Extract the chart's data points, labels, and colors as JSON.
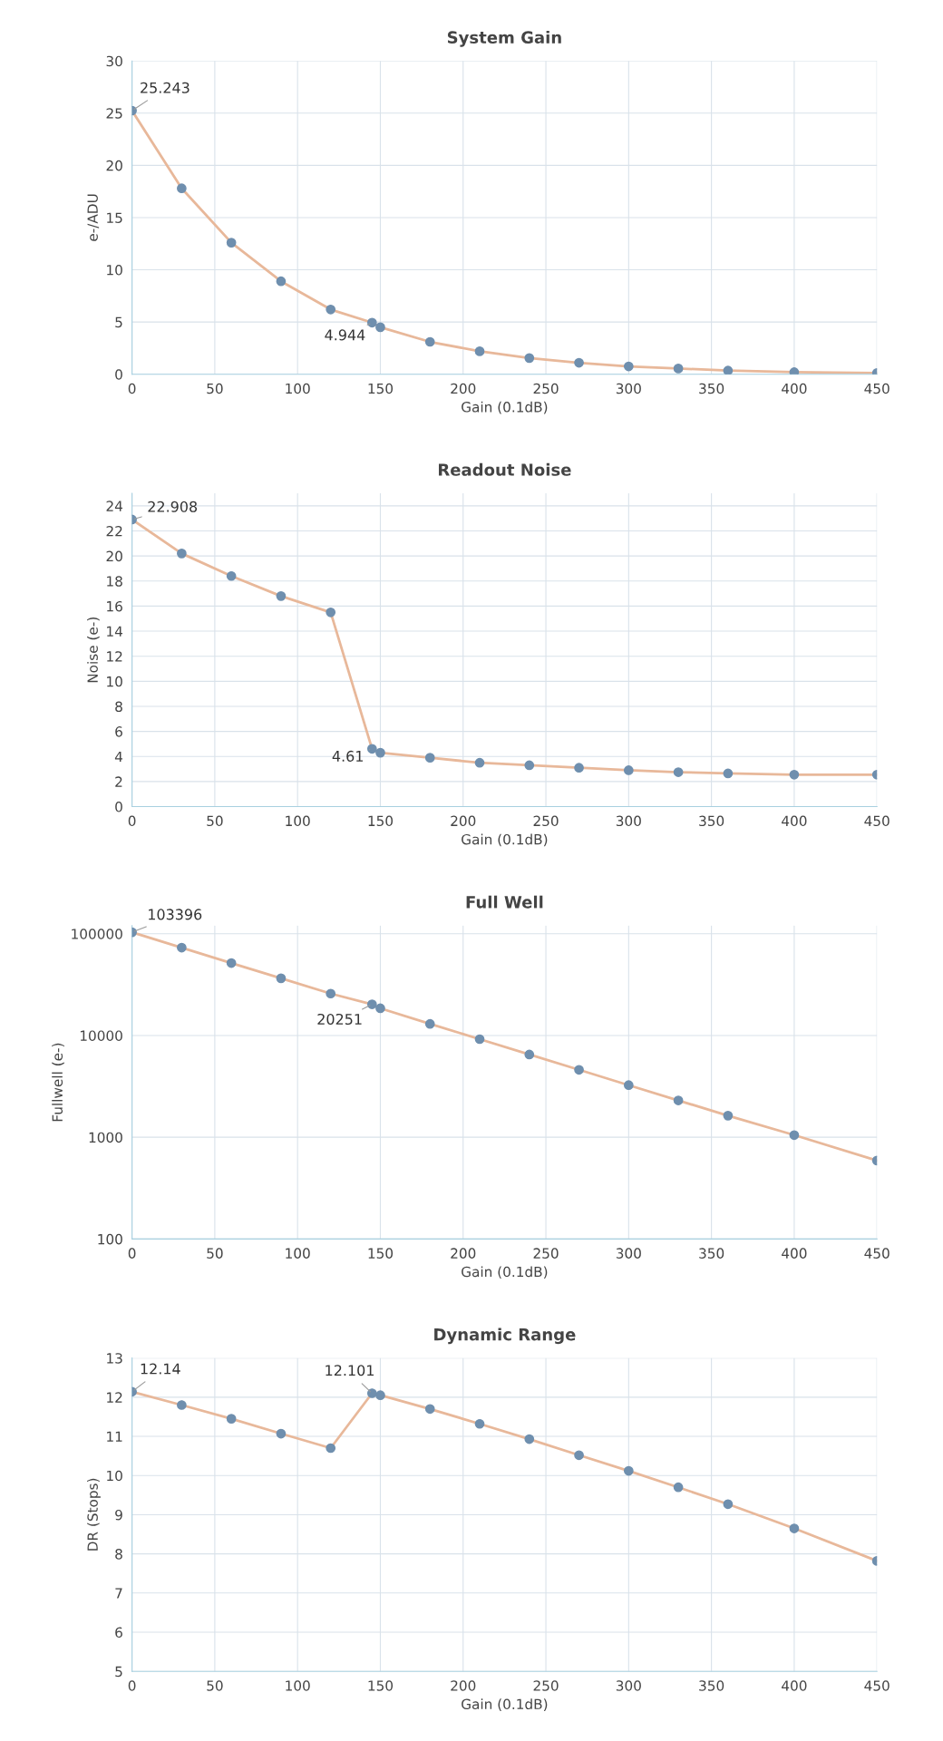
{
  "chart_data": [
    {
      "type": "line",
      "title": "System Gain",
      "xlabel": "Gain (0.1dB)",
      "ylabel": "e-/ADU",
      "x": [
        0,
        30,
        60,
        90,
        120,
        145,
        150,
        180,
        210,
        240,
        270,
        300,
        330,
        360,
        400,
        450
      ],
      "series": [
        {
          "color": "#6f8fae",
          "values": [
            25.243,
            17.8,
            12.6,
            8.9,
            6.2,
            4.944,
            4.5,
            3.1,
            2.2,
            1.55,
            1.1,
            0.75,
            0.55,
            0.35,
            0.2,
            0.12
          ],
          "value_labels": [
            "25.243",
            null,
            null,
            null,
            null,
            "4.944",
            null,
            null,
            null,
            null,
            null,
            null,
            null,
            null,
            null,
            null
          ]
        }
      ],
      "xlim": [
        0,
        450
      ],
      "xticks": [
        0,
        50,
        100,
        150,
        200,
        250,
        300,
        350,
        400,
        450
      ],
      "ylim": [
        0,
        30
      ],
      "yticks": [
        0,
        5,
        10,
        15,
        20,
        25,
        30
      ],
      "grid": true,
      "marker": "circle",
      "line_style": "solid"
    },
    {
      "type": "line",
      "title": "Readout Noise",
      "xlabel": "Gain (0.1dB)",
      "ylabel": "Noise (e-)",
      "x": [
        0,
        30,
        60,
        90,
        120,
        145,
        150,
        180,
        210,
        240,
        270,
        300,
        330,
        360,
        400,
        450
      ],
      "series": [
        {
          "color": "#6f8fae",
          "values": [
            22.908,
            20.2,
            18.4,
            16.8,
            15.5,
            4.61,
            4.3,
            3.9,
            3.5,
            3.3,
            3.1,
            2.9,
            2.75,
            2.65,
            2.55,
            2.55
          ],
          "value_labels": [
            "22.908",
            null,
            null,
            null,
            null,
            "4.61",
            null,
            null,
            null,
            null,
            null,
            null,
            null,
            null,
            null,
            null
          ]
        }
      ],
      "xlim": [
        0,
        450
      ],
      "xticks": [
        0,
        50,
        100,
        150,
        200,
        250,
        300,
        350,
        400,
        450
      ],
      "ylim": [
        0,
        25
      ],
      "yticks": [
        0,
        2,
        4,
        6,
        8,
        10,
        12,
        14,
        16,
        18,
        20,
        22,
        24
      ],
      "grid": true,
      "marker": "circle",
      "line_style": "solid"
    },
    {
      "type": "line",
      "title": "Full Well",
      "xlabel": "Gain (0.1dB)",
      "ylabel": "Fullwell (e-)",
      "x": [
        0,
        30,
        60,
        90,
        120,
        145,
        150,
        180,
        210,
        240,
        270,
        300,
        330,
        360,
        400,
        450
      ],
      "series": [
        {
          "color": "#6f8fae",
          "values": [
            103396,
            73000,
            51500,
            36500,
            25800,
            20251,
            18500,
            13000,
            9200,
            6500,
            4600,
            3250,
            2300,
            1630,
            1050,
            590
          ],
          "value_labels": [
            "103396",
            null,
            null,
            null,
            null,
            "20251",
            null,
            null,
            null,
            null,
            null,
            null,
            null,
            null,
            null,
            null
          ]
        }
      ],
      "log": "y",
      "xlim": [
        0,
        450
      ],
      "xticks": [
        0,
        50,
        100,
        150,
        200,
        250,
        300,
        350,
        400,
        450
      ],
      "ylim": [
        100,
        120000
      ],
      "yticks": [
        100,
        1000,
        10000,
        100000
      ],
      "grid": true,
      "marker": "circle",
      "line_style": "solid"
    },
    {
      "type": "line",
      "title": "Dynamic Range",
      "xlabel": "Gain (0.1dB)",
      "ylabel": "DR (Stops)",
      "x": [
        0,
        30,
        60,
        90,
        120,
        145,
        150,
        180,
        210,
        240,
        270,
        300,
        330,
        360,
        400,
        450
      ],
      "series": [
        {
          "color": "#6f8fae",
          "values": [
            12.14,
            11.8,
            11.45,
            11.07,
            10.7,
            12.101,
            12.05,
            11.7,
            11.32,
            10.93,
            10.52,
            10.12,
            9.7,
            9.27,
            8.65,
            7.82
          ],
          "value_labels": [
            "12.14",
            null,
            null,
            null,
            null,
            "12.101",
            null,
            null,
            null,
            null,
            null,
            null,
            null,
            null,
            null,
            null
          ]
        }
      ],
      "xlim": [
        0,
        450
      ],
      "xticks": [
        0,
        50,
        100,
        150,
        200,
        250,
        300,
        350,
        400,
        450
      ],
      "ylim": [
        5,
        13
      ],
      "yticks": [
        5,
        6,
        7,
        8,
        9,
        10,
        11,
        12,
        13
      ],
      "grid": true,
      "marker": "circle",
      "line_style": "solid"
    }
  ]
}
